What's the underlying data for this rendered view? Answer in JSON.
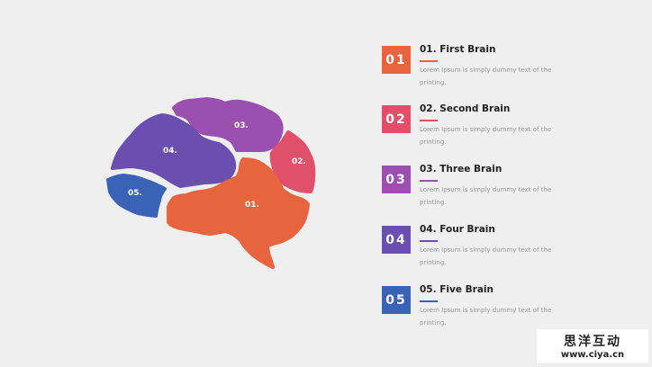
{
  "brain": {
    "sections": [
      {
        "label": "01.",
        "color": "#e8643f"
      },
      {
        "label": "02.",
        "color": "#e0506a"
      },
      {
        "label": "03.",
        "color": "#9b4fb0"
      },
      {
        "label": "04.",
        "color": "#6a4fb0"
      },
      {
        "label": "05.",
        "color": "#3a63b5"
      }
    ]
  },
  "items": [
    {
      "number": "01",
      "title": "01. First Brain",
      "text": "Lorem Ipsum is simply dummy text of the printing.",
      "color": "#e8643f"
    },
    {
      "number": "02",
      "title": "02. Second Brain",
      "text": "Lorem Ipsum is simply dummy text of the printing.",
      "color": "#e0506a"
    },
    {
      "number": "03",
      "title": "03. Three Brain",
      "text": "Lorem Ipsum is simply dummy text of the printing.",
      "color": "#9b4fb0"
    },
    {
      "number": "04",
      "title": "04. Four Brain",
      "text": "Lorem Ipsum is simply dummy text of the printing.",
      "color": "#6a4fb0"
    },
    {
      "number": "05",
      "title": "05. Five Brain",
      "text": "Lorem Ipsum is simply dummy text of the printing.",
      "color": "#3a63b5"
    }
  ],
  "watermark": {
    "line1": "思洋互动",
    "line2": "www.ciya.cn"
  }
}
